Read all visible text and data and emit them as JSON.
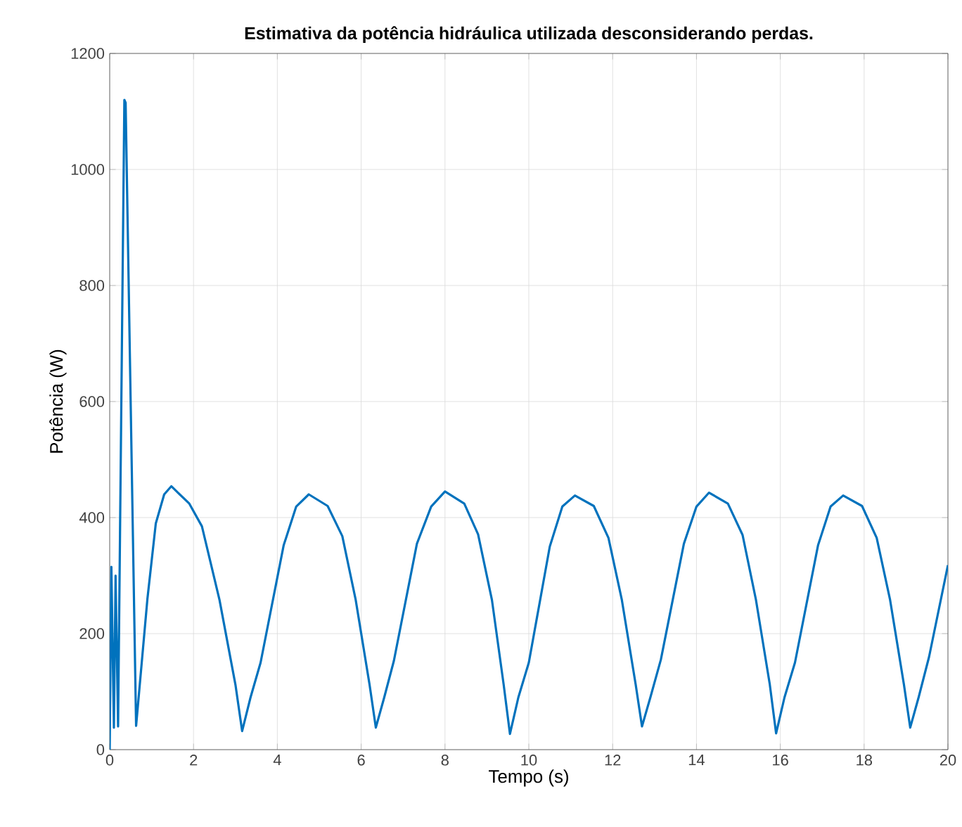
{
  "chart_data": {
    "type": "line",
    "title": "**Estimativa da potência hidráulica utilizada desconsiderando perdas.**",
    "xlabel": "Tempo (s)",
    "ylabel": "Potência (W)",
    "xlim": [
      0,
      20
    ],
    "ylim": [
      0,
      1200
    ],
    "xticks": [
      0,
      2,
      4,
      6,
      8,
      10,
      12,
      14,
      16,
      18,
      20
    ],
    "yticks": [
      0,
      200,
      400,
      600,
      800,
      1000,
      1200
    ],
    "grid": true,
    "marker": "none",
    "line_style": "solid",
    "series": [
      {
        "color": "#0072bd",
        "x": [
          0,
          0.04,
          0.1,
          0.14,
          0.2,
          0.35,
          0.38,
          0.63,
          0.9,
          1.1,
          1.3,
          1.47,
          1.9,
          2.2,
          2.62,
          3.0,
          3.16,
          3.36,
          3.6,
          4.15,
          4.45,
          4.75,
          5.2,
          5.55,
          5.87,
          6.2,
          6.35,
          6.55,
          6.78,
          7.33,
          7.67,
          8.0,
          8.46,
          8.79,
          9.12,
          9.4,
          9.55,
          9.75,
          10.0,
          10.5,
          10.8,
          11.1,
          11.55,
          11.9,
          12.22,
          12.55,
          12.7,
          12.9,
          13.15,
          13.7,
          14.0,
          14.3,
          14.75,
          15.1,
          15.42,
          15.75,
          15.9,
          16.1,
          16.35,
          16.9,
          17.2,
          17.5,
          17.95,
          18.3,
          18.62,
          18.95,
          19.1,
          19.3,
          19.55,
          20
        ],
        "values": [
          0,
          315,
          38,
          300,
          40,
          1120,
          1115,
          41,
          260,
          390,
          440,
          454,
          424,
          385,
          258,
          112,
          32,
          90,
          150,
          352,
          419,
          440,
          420,
          368,
          258,
          112,
          38,
          90,
          153,
          355,
          419,
          445,
          424,
          371,
          258,
          112,
          27,
          90,
          150,
          350,
          419,
          438,
          420,
          365,
          258,
          112,
          40,
          90,
          155,
          355,
          419,
          443,
          424,
          370,
          258,
          112,
          28,
          90,
          150,
          352,
          419,
          438,
          420,
          365,
          258,
          112,
          38,
          90,
          160,
          318
        ]
      }
    ]
  }
}
